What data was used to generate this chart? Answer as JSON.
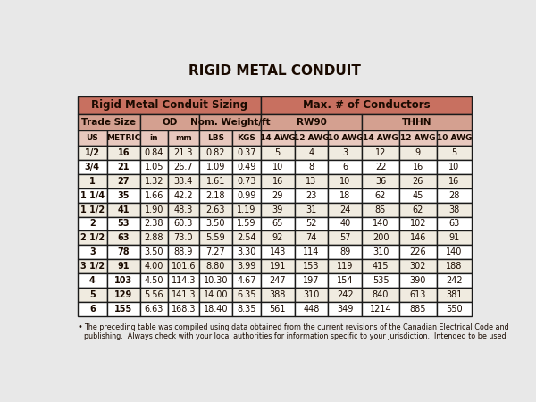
{
  "title": "RIGID METAL CONDUIT",
  "header_row3": [
    "US",
    "METRIC",
    "in",
    "mm",
    "LBS",
    "KGS",
    "14 AWG",
    "12 AWG",
    "10 AWG",
    "14 AWG",
    "12 AWG",
    "10 AWG"
  ],
  "rows": [
    [
      "1/2",
      "16",
      "0.84",
      "21.3",
      "0.82",
      "0.37",
      "5",
      "4",
      "3",
      "12",
      "9",
      "5"
    ],
    [
      "3/4",
      "21",
      "1.05",
      "26.7",
      "1.09",
      "0.49",
      "10",
      "8",
      "6",
      "22",
      "16",
      "10"
    ],
    [
      "1",
      "27",
      "1.32",
      "33.4",
      "1.61",
      "0.73",
      "16",
      "13",
      "10",
      "36",
      "26",
      "16"
    ],
    [
      "1 1/4",
      "35",
      "1.66",
      "42.2",
      "2.18",
      "0.99",
      "29",
      "23",
      "18",
      "62",
      "45",
      "28"
    ],
    [
      "1 1/2",
      "41",
      "1.90",
      "48.3",
      "2.63",
      "1.19",
      "39",
      "31",
      "24",
      "85",
      "62",
      "38"
    ],
    [
      "2",
      "53",
      "2.38",
      "60.3",
      "3.50",
      "1.59",
      "65",
      "52",
      "40",
      "140",
      "102",
      "63"
    ],
    [
      "2 1/2",
      "63",
      "2.88",
      "73.0",
      "5.59",
      "2.54",
      "92",
      "74",
      "57",
      "200",
      "146",
      "91"
    ],
    [
      "3",
      "78",
      "3.50",
      "88.9",
      "7.27",
      "3.30",
      "143",
      "114",
      "89",
      "310",
      "226",
      "140"
    ],
    [
      "3 1/2",
      "91",
      "4.00",
      "101.6",
      "8.80",
      "3.99",
      "191",
      "153",
      "119",
      "415",
      "302",
      "188"
    ],
    [
      "4",
      "103",
      "4.50",
      "114.3",
      "10.30",
      "4.67",
      "247",
      "197",
      "154",
      "535",
      "390",
      "242"
    ],
    [
      "5",
      "129",
      "5.56",
      "141.3",
      "14.00",
      "6.35",
      "388",
      "310",
      "242",
      "840",
      "613",
      "381"
    ],
    [
      "6",
      "155",
      "6.63",
      "168.3",
      "18.40",
      "8.35",
      "561",
      "448",
      "349",
      "1214",
      "885",
      "550"
    ]
  ],
  "footnote": "The preceding table was compiled using data obtained from the current revisions of the Canadian Electrical Code and\npublishing.  Always check with your local authorities for information specific to your jurisdiction.  Intended to be used",
  "bg_color": "#e8e8e8",
  "header1_color": "#c87060",
  "header2_color": "#d4a090",
  "header3_color": "#e8c8be",
  "row_odd_color": "#f0ebe0",
  "row_even_color": "#ffffff",
  "text_dark": "#1a0a00",
  "text_red": "#8b1a00",
  "border_color": "#1a1a1a"
}
